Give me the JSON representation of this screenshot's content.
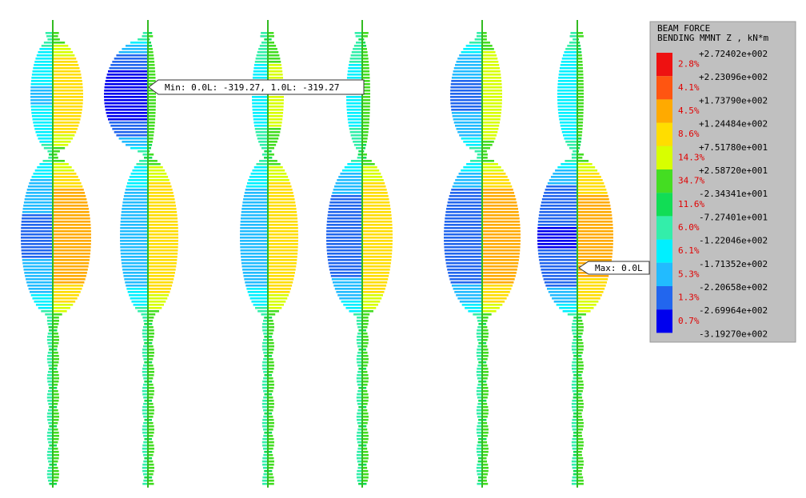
{
  "legend": {
    "title": "BEAM FORCE",
    "subtitle": "BENDING MMNT Z , kN*m",
    "levels": [
      "+2.72402e+002",
      "+2.23096e+002",
      "+1.73790e+002",
      "+1.24484e+002",
      "+7.51780e+001",
      "+2.58720e+001",
      "-2.34341e+001",
      "-7.27401e+001",
      "-1.22046e+002",
      "-1.71352e+002",
      "-2.20658e+002",
      "-2.69964e+002",
      "-3.19270e+002"
    ],
    "bands": [
      {
        "percent": "2.8%",
        "color": "#ee1111"
      },
      {
        "percent": "4.1%",
        "color": "#ff5511"
      },
      {
        "percent": "4.5%",
        "color": "#ffaa00"
      },
      {
        "percent": "8.6%",
        "color": "#ffdd00"
      },
      {
        "percent": "14.3%",
        "color": "#d8ff00"
      },
      {
        "percent": "34.7%",
        "color": "#44dd22"
      },
      {
        "percent": "11.6%",
        "color": "#11dd55"
      },
      {
        "percent": "6.0%",
        "color": "#33eeaa"
      },
      {
        "percent": "6.1%",
        "color": "#00f0ff"
      },
      {
        "percent": "5.3%",
        "color": "#22bbff"
      },
      {
        "percent": "1.3%",
        "color": "#2266ee"
      },
      {
        "percent": "0.7%",
        "color": "#0000ee"
      }
    ]
  },
  "annotations": {
    "min": "Min: 0.0L: -319.27, 1.0L: -319.27",
    "max": "Max: 0.0L"
  }
}
